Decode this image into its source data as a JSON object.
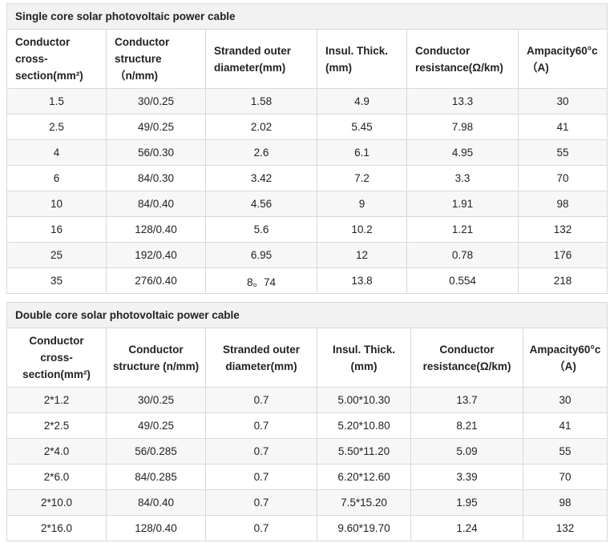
{
  "tables": [
    {
      "caption": "Single core solar photovoltaic power cable",
      "headers": [
        "Conductor cross-section(mm²)",
        "Conductor structure （n/mm)",
        "Stranded outer diameter(mm)",
        "Insul. Thick. (mm)",
        "Conductor resistance(Ω/km)",
        "Ampacity60°c（A)"
      ],
      "rows": [
        [
          "1.5",
          "30/0.25",
          "1.58",
          "4.9",
          "13.3",
          "30"
        ],
        [
          "2.5",
          "49/0.25",
          "2.02",
          "5.45",
          "7.98",
          "41"
        ],
        [
          "4",
          "56/0.30",
          "2.6",
          "6.1",
          "4.95",
          "55"
        ],
        [
          "6",
          "84/0.30",
          "3.42",
          "7.2",
          "3.3",
          "70"
        ],
        [
          "10",
          "84/0.40",
          "4.56",
          "9",
          "1.91",
          "98"
        ],
        [
          "16",
          "128/0.40",
          "5.6",
          "10.2",
          "1.21",
          "132"
        ],
        [
          "25",
          "192/0.40",
          "6.95",
          "12",
          "0.78",
          "176"
        ],
        [
          "35",
          "276/0.40",
          "8。74",
          "13.8",
          "0.554",
          "218"
        ]
      ]
    },
    {
      "caption": "Double core solar photovoltaic power cable",
      "headers": [
        "Conductor cross-section(mm²)",
        "Conductor structure (n/mm)",
        "Stranded outer diameter(mm)",
        "Insul. Thick. (mm)",
        "Conductor resistance(Ω/km)",
        "Ampacity60°c（A)"
      ],
      "rows": [
        [
          "2*1.2",
          "30/0.25",
          "0.7",
          "5.00*10.30",
          "13.7",
          "30"
        ],
        [
          "2*2.5",
          "49/0.25",
          "0.7",
          "5.20*10.80",
          "8.21",
          "41"
        ],
        [
          "2*4.0",
          "56/0.285",
          "0.7",
          "5.50*11.20",
          "5.09",
          "55"
        ],
        [
          "2*6.0",
          "84/0.285",
          "0.7",
          "6.20*12.60",
          "3.39",
          "70"
        ],
        [
          "2*10.0",
          "84/0.40",
          "0.7",
          "7.5*15.20",
          "1.95",
          "98"
        ],
        [
          "2*16.0",
          "128/0.40",
          "0.7",
          "9.60*19.70",
          "1.24",
          "132"
        ]
      ]
    }
  ]
}
